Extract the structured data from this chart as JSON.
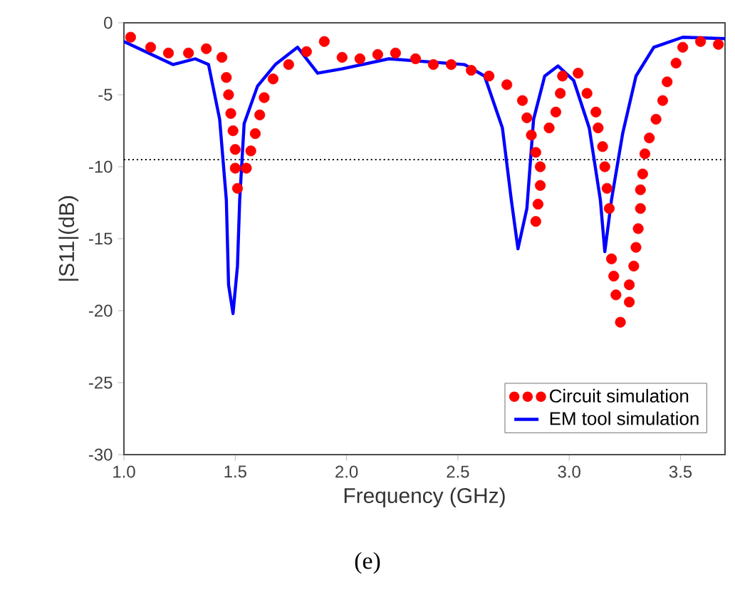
{
  "chart_data": {
    "type": "scatter",
    "xlabel": "Frequency (GHz)",
    "ylabel": "|S11|(dB)",
    "xlim": [
      1.0,
      3.7
    ],
    "ylim": [
      -30,
      0
    ],
    "xticks": [
      {
        "value": 1.0,
        "label": "1.0"
      },
      1.5,
      {
        "value": 2.0,
        "label": "2.0"
      },
      2.5,
      {
        "value": 3.0,
        "label": "3.0"
      },
      3.5
    ],
    "yticks": [
      0,
      -5,
      -10,
      -15,
      -20,
      -25,
      -30
    ],
    "legend": "bottom right",
    "grid": false,
    "ref_lines": [
      {
        "axis": "y",
        "value": -9.5,
        "color": "#000000",
        "line_style": "dotted"
      }
    ],
    "annotations": [
      "(e)"
    ],
    "series": [
      {
        "name": "Circuit simulation",
        "marker": "circle",
        "color": "#ff0000",
        "x": [
          1.03,
          1.12,
          1.2,
          1.29,
          1.37,
          1.44,
          1.46,
          1.47,
          1.48,
          1.49,
          1.5,
          1.5,
          1.51,
          1.55,
          1.57,
          1.59,
          1.61,
          1.63,
          1.67,
          1.74,
          1.82,
          1.9,
          1.98,
          2.06,
          2.14,
          2.22,
          2.31,
          2.39,
          2.47,
          2.56,
          2.64,
          2.72,
          2.79,
          2.81,
          2.83,
          2.85,
          2.87,
          2.87,
          2.86,
          2.85,
          2.91,
          2.94,
          2.96,
          2.97,
          3.04,
          3.08,
          3.12,
          3.13,
          3.15,
          3.16,
          3.17,
          3.18,
          3.19,
          3.2,
          3.21,
          3.23,
          3.27,
          3.27,
          3.29,
          3.3,
          3.31,
          3.32,
          3.32,
          3.33,
          3.34,
          3.36,
          3.39,
          3.42,
          3.44,
          3.48,
          3.51,
          3.59,
          3.67
        ],
        "values": [
          -1.0,
          -1.7,
          -2.1,
          -2.1,
          -1.8,
          -2.4,
          -3.8,
          -5.0,
          -6.3,
          -7.5,
          -8.8,
          -10.1,
          -11.5,
          -10.1,
          -8.9,
          -7.7,
          -6.4,
          -5.2,
          -3.9,
          -2.9,
          -2.0,
          -1.3,
          -2.4,
          -2.5,
          -2.2,
          -2.1,
          -2.5,
          -2.9,
          -2.9,
          -3.3,
          -3.7,
          -4.3,
          -5.4,
          -6.6,
          -7.8,
          -9.0,
          -10.0,
          -11.3,
          -12.6,
          -13.8,
          -7.3,
          -6.2,
          -4.9,
          -3.7,
          -3.5,
          -4.9,
          -6.2,
          -7.3,
          -8.6,
          -10.0,
          -11.5,
          -12.9,
          -16.4,
          -17.6,
          -18.9,
          -20.8,
          -19.4,
          -18.2,
          -16.9,
          -15.6,
          -14.3,
          -12.9,
          -11.6,
          -10.5,
          -9.1,
          -8.0,
          -6.7,
          -5.4,
          -4.1,
          -2.8,
          -1.7,
          -1.3,
          -1.5
        ]
      },
      {
        "name": "EM tool simulation",
        "type": "line",
        "line_style": "solid",
        "marker": "none",
        "color": "#0000ff",
        "x": [
          1.0,
          1.22,
          1.32,
          1.38,
          1.43,
          1.46,
          1.47,
          1.49,
          1.51,
          1.52,
          1.54,
          1.6,
          1.68,
          1.78,
          1.87,
          1.98,
          2.19,
          2.53,
          2.62,
          2.7,
          2.74,
          2.77,
          2.81,
          2.84,
          2.89,
          2.95,
          3.02,
          3.09,
          3.14,
          3.16,
          3.19,
          3.24,
          3.3,
          3.38,
          3.51,
          3.7
        ],
        "values": [
          -1.3,
          -2.9,
          -2.5,
          -2.9,
          -6.7,
          -12.3,
          -18.2,
          -20.2,
          -16.9,
          -12.3,
          -7.0,
          -4.4,
          -2.9,
          -1.7,
          -3.5,
          -3.2,
          -2.5,
          -2.9,
          -3.7,
          -7.3,
          -12.3,
          -15.7,
          -12.9,
          -6.7,
          -3.7,
          -3.0,
          -4.0,
          -7.3,
          -12.3,
          -15.9,
          -12.3,
          -7.7,
          -3.7,
          -1.7,
          -1.0,
          -1.1
        ]
      }
    ]
  }
}
